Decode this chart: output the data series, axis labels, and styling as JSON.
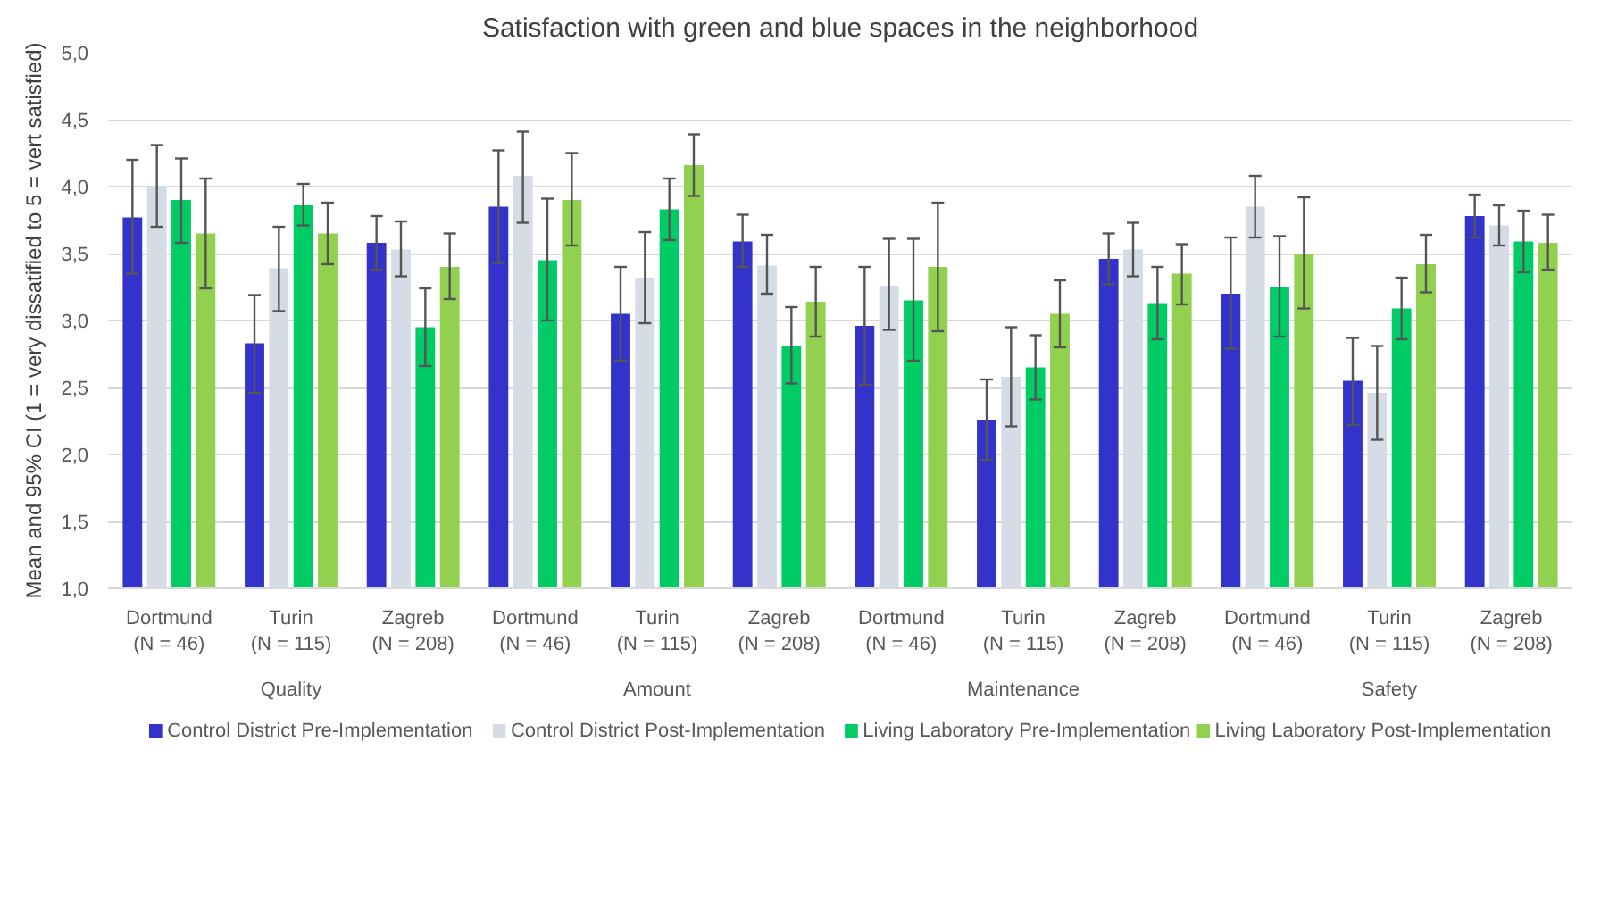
{
  "chart_data": {
    "type": "bar",
    "title": "Satisfaction with green and blue spaces in the neighborhood",
    "ylabel": "Mean and 95% CI (1 = very dissatified to 5 = vert satisfied)",
    "categories": [
      "Dortmund\n(N = 46)",
      "Turin\n(N = 115)",
      "Zagreb\n(N = 208)",
      "Dortmund\n(N = 46)",
      "Turin\n(N = 115)",
      "Zagreb\n(N = 208)",
      "Dortmund\n(N = 46)",
      "Turin\n(N = 115)",
      "Zagreb\n(N = 208)",
      "Dortmund\n(N = 46)",
      "Turin\n(N = 115)",
      "Zagreb\n(N = 208)"
    ],
    "annotations": [
      "Quality",
      "Amount",
      "Maintenance",
      "Safety"
    ],
    "series": [
      {
        "name": "Control District Pre-Implementation",
        "color": "#3333cc",
        "values": [
          3.77,
          2.83,
          3.58,
          3.85,
          3.05,
          3.59,
          2.96,
          2.26,
          3.46,
          3.2,
          2.55,
          3.78
        ],
        "errors": [
          [
            3.35,
            4.2
          ],
          [
            2.46,
            3.19
          ],
          [
            3.38,
            3.78
          ],
          [
            3.43,
            4.27
          ],
          [
            2.7,
            3.4
          ],
          [
            3.4,
            3.79
          ],
          [
            2.52,
            3.4
          ],
          [
            1.96,
            2.56
          ],
          [
            3.27,
            3.65
          ],
          [
            2.79,
            3.62
          ],
          [
            2.22,
            2.87
          ],
          [
            3.62,
            3.94
          ]
        ]
      },
      {
        "name": "Control District Post-Implementation",
        "color": "#d5dce6",
        "values": [
          4.0,
          3.39,
          3.53,
          4.08,
          3.32,
          3.41,
          3.26,
          2.58,
          3.53,
          3.85,
          2.46,
          3.71
        ],
        "errors": [
          [
            3.7,
            4.31
          ],
          [
            3.07,
            3.7
          ],
          [
            3.33,
            3.74
          ],
          [
            3.73,
            4.41
          ],
          [
            2.98,
            3.66
          ],
          [
            3.2,
            3.64
          ],
          [
            2.93,
            3.61
          ],
          [
            2.21,
            2.95
          ],
          [
            3.33,
            3.73
          ],
          [
            3.62,
            4.08
          ],
          [
            2.11,
            2.81
          ],
          [
            3.56,
            3.86
          ]
        ]
      },
      {
        "name": "Living Laboratory Pre-Implementation",
        "color": "#00cc66",
        "values": [
          3.9,
          3.86,
          2.95,
          3.45,
          3.83,
          2.81,
          3.15,
          2.65,
          3.13,
          3.25,
          3.09,
          3.59
        ],
        "errors": [
          [
            3.58,
            4.21
          ],
          [
            3.71,
            4.02
          ],
          [
            2.66,
            3.24
          ],
          [
            3.0,
            3.91
          ],
          [
            3.6,
            4.06
          ],
          [
            2.53,
            3.1
          ],
          [
            2.7,
            3.61
          ],
          [
            2.41,
            2.89
          ],
          [
            2.86,
            3.4
          ],
          [
            2.88,
            3.63
          ],
          [
            2.86,
            3.32
          ],
          [
            3.36,
            3.82
          ]
        ]
      },
      {
        "name": "Living Laboratory Post-Implementation",
        "color": "#92d050",
        "values": [
          3.65,
          3.65,
          3.4,
          3.9,
          4.16,
          3.14,
          3.4,
          3.05,
          3.35,
          3.5,
          3.42,
          3.58
        ],
        "errors": [
          [
            3.24,
            4.06
          ],
          [
            3.42,
            3.88
          ],
          [
            3.16,
            3.65
          ],
          [
            3.56,
            4.25
          ],
          [
            3.93,
            4.39
          ],
          [
            2.88,
            3.4
          ],
          [
            2.92,
            3.88
          ],
          [
            2.8,
            3.3
          ],
          [
            3.12,
            3.57
          ],
          [
            3.09,
            3.92
          ],
          [
            3.21,
            3.64
          ],
          [
            3.38,
            3.79
          ]
        ]
      }
    ],
    "ylim": [
      1,
      5
    ],
    "yticks": [
      {
        "value": 1,
        "label": "1,0"
      },
      {
        "value": 1.5,
        "label": "1,5"
      },
      {
        "value": 2,
        "label": "2,0"
      },
      {
        "value": 2.5,
        "label": "2,5"
      },
      {
        "value": 3,
        "label": "3,0"
      },
      {
        "value": 3.5,
        "label": "3,5"
      },
      {
        "value": 4,
        "label": "4,0"
      },
      {
        "value": 4.5,
        "label": "4,5"
      },
      {
        "value": 5,
        "label": "5,0"
      }
    ],
    "grid": "y",
    "legend": "bottom"
  }
}
